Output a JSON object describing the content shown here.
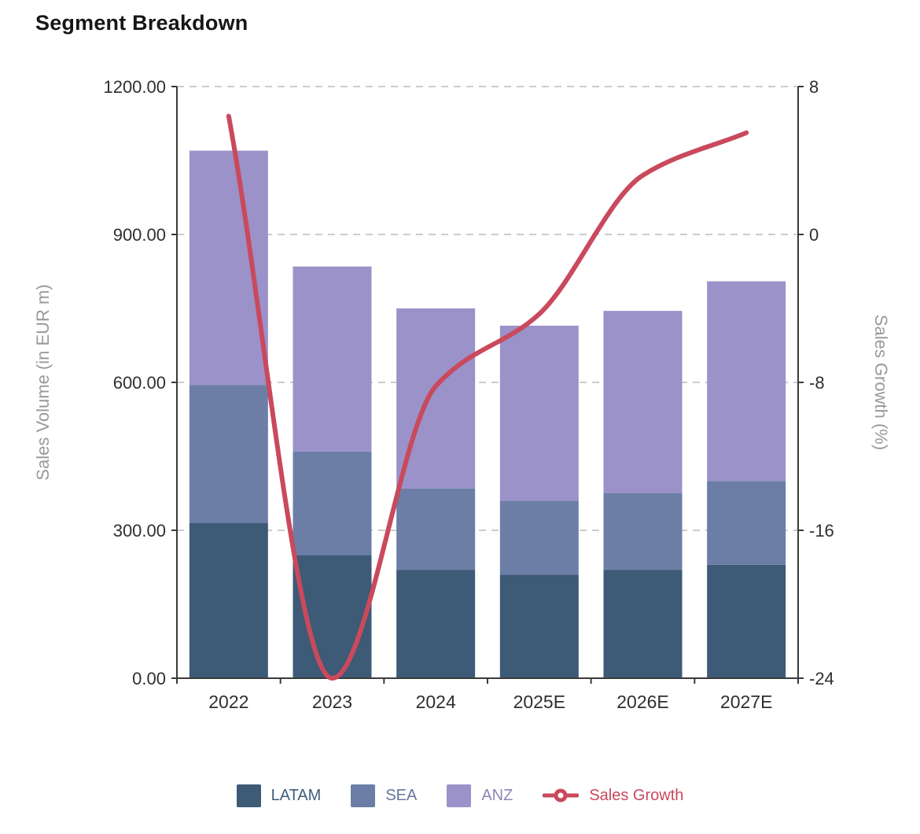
{
  "header": {
    "title": "Segment Breakdown"
  },
  "style": {
    "background": "#ffffff",
    "axis_line_color": "#3a3a3a",
    "grid_color": "#cccccc",
    "tick_label_color": "#2f2f2f",
    "axis_title_color": "#999999"
  },
  "chart_data": {
    "type": "bar",
    "subtype": "stacked-bar-with-line",
    "title": "Segment Breakdown",
    "categories": [
      "2022",
      "2023",
      "2024",
      "2025E",
      "2026E",
      "2027E"
    ],
    "series": [
      {
        "name": "LATAM",
        "type": "bar",
        "stack": true,
        "color": "#3d5a76",
        "values": [
          315,
          250,
          220,
          210,
          220,
          230
        ]
      },
      {
        "name": "SEA",
        "type": "bar",
        "stack": true,
        "color": "#6c7ea6",
        "values": [
          280,
          210,
          165,
          150,
          155,
          170
        ]
      },
      {
        "name": "ANZ",
        "type": "bar",
        "stack": true,
        "color": "#9b92c9",
        "values": [
          475,
          375,
          365,
          355,
          370,
          405
        ]
      },
      {
        "name": "Sales Growth",
        "type": "line",
        "axis": "right",
        "color": "#c9495d",
        "values": [
          6.4,
          -24,
          -8.2,
          -4.3,
          3.2,
          5.5
        ]
      }
    ],
    "left_axis": {
      "title": "Sales Volume (in EUR m)",
      "min": 0,
      "max": 1200,
      "tick_values": [
        0,
        300,
        600,
        900,
        1200
      ],
      "tick_labels": [
        "0.00",
        "300.00",
        "600.00",
        "900.00",
        "1200.00"
      ]
    },
    "right_axis": {
      "title": "Sales Growth (%)",
      "min": -24,
      "max": 8,
      "tick_values": [
        -24,
        -16,
        -8,
        0,
        8
      ],
      "tick_labels": [
        "-24",
        "-16",
        "-8",
        "0",
        "8"
      ]
    },
    "grid": {
      "show": true,
      "style": "dashed",
      "orientation": "horizontal"
    },
    "legend": {
      "position": "bottom",
      "items": [
        {
          "label": "LATAM",
          "marker": "square",
          "color": "#3d5a76",
          "label_color": "#415d7b"
        },
        {
          "label": "SEA",
          "marker": "square",
          "color": "#6c7ea6",
          "label_color": "#63779f"
        },
        {
          "label": "ANZ",
          "marker": "square",
          "color": "#9b92c9",
          "label_color": "#8d85b8"
        },
        {
          "label": "Sales Growth",
          "marker": "line-circle",
          "color": "#c9495d",
          "label_color": "#c9495d"
        }
      ]
    }
  }
}
